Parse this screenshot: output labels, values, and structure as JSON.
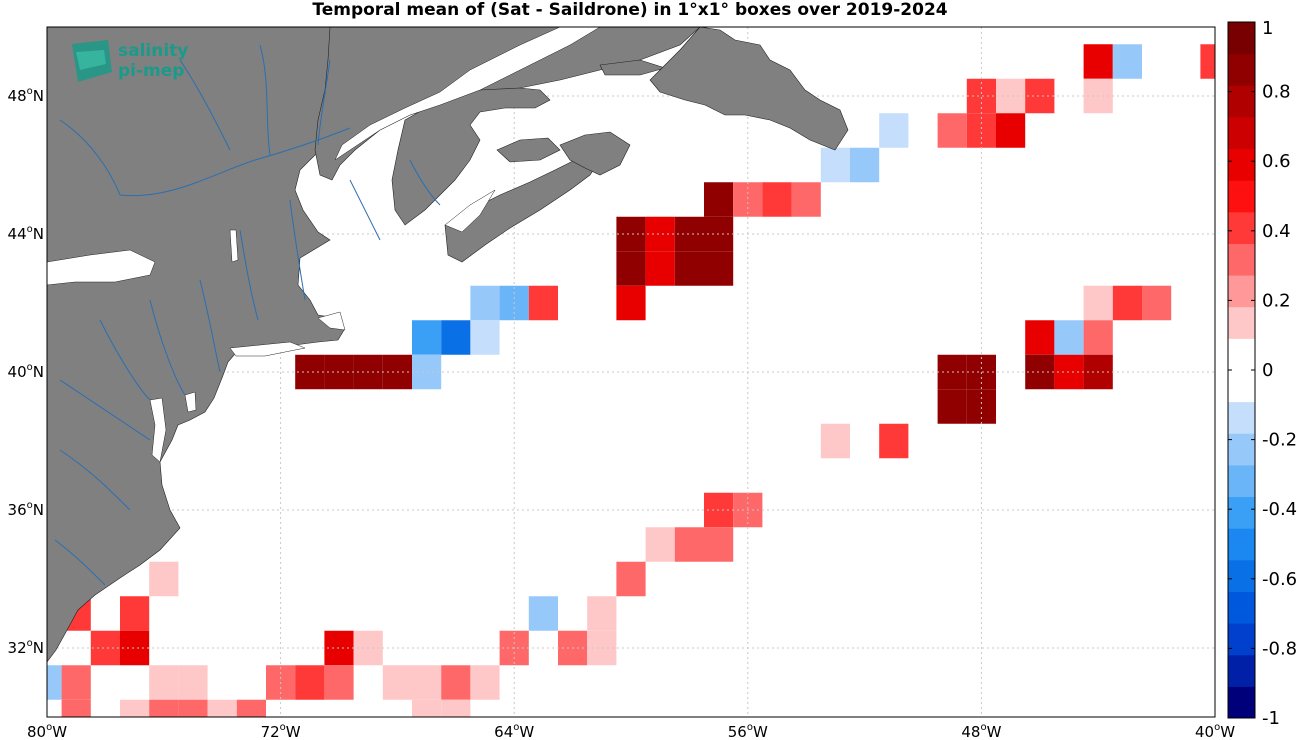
{
  "title": "Temporal mean of (Sat - Saildrone) in 1°x1° boxes over 2019-2024",
  "logo": {
    "line1": "salinity",
    "line2": "pi-mep"
  },
  "colors": {
    "land": "#808080",
    "river": "#2a6fb0",
    "grid": "#c8c8c8",
    "frame": "#000000"
  },
  "map": {
    "lon_range": [
      -80,
      -40
    ],
    "lat_range": [
      30,
      50
    ],
    "lon_ticks": [
      {
        "value": -80,
        "deg": "80",
        "hem": "W"
      },
      {
        "value": -72,
        "deg": "72",
        "hem": "W"
      },
      {
        "value": -64,
        "deg": "64",
        "hem": "W"
      },
      {
        "value": -56,
        "deg": "56",
        "hem": "W"
      },
      {
        "value": -48,
        "deg": "48",
        "hem": "W"
      },
      {
        "value": -40,
        "deg": "40",
        "hem": "W"
      }
    ],
    "lat_ticks": [
      {
        "value": 32,
        "deg": "32",
        "hem": "N"
      },
      {
        "value": 36,
        "deg": "36",
        "hem": "N"
      },
      {
        "value": 40,
        "deg": "40",
        "hem": "N"
      },
      {
        "value": 44,
        "deg": "44",
        "hem": "N"
      },
      {
        "value": 48,
        "deg": "48",
        "hem": "N"
      }
    ],
    "degree_symbol": "o"
  },
  "colorbar": {
    "range": [
      -1,
      1
    ],
    "colors": [
      "#00007a",
      "#0020a8",
      "#0040cc",
      "#0058dc",
      "#0a70e6",
      "#1a88f0",
      "#3aa0f5",
      "#6ab4f8",
      "#96c8fa",
      "#c4defc",
      "#ffffff",
      "#ffffff",
      "#ffc8c8",
      "#ff9898",
      "#ff6868",
      "#ff3838",
      "#ff1010",
      "#e80000",
      "#cc0000",
      "#b00000",
      "#900000",
      "#780000"
    ],
    "ticks": [
      {
        "value": 1,
        "label": "1"
      },
      {
        "value": 0.8,
        "label": "0.8"
      },
      {
        "value": 0.6,
        "label": "0.6"
      },
      {
        "value": 0.4,
        "label": "0.4"
      },
      {
        "value": 0.2,
        "label": "0.2"
      },
      {
        "value": 0,
        "label": "0"
      },
      {
        "value": -0.2,
        "label": "-0.2"
      },
      {
        "value": -0.4,
        "label": "-0.4"
      },
      {
        "value": -0.6,
        "label": "-0.6"
      },
      {
        "value": -0.8,
        "label": "-0.8"
      },
      {
        "value": -1,
        "label": "-1"
      }
    ]
  },
  "chart_data": {
    "type": "heatmap",
    "title": "Temporal mean of (Sat - Saildrone) in 1°x1° boxes over 2019-2024",
    "xlabel": "",
    "ylabel": "",
    "x_units": "longitude (°E, negative = W)",
    "y_units": "latitude (°N)",
    "xlim": [
      -80,
      -40
    ],
    "ylim": [
      30,
      50
    ],
    "cell_size_deg": 1,
    "colorbar_range": [
      -1,
      1
    ],
    "cells": [
      {
        "lon": -44,
        "lat": 49,
        "value": 0.55
      },
      {
        "lon": -43,
        "lat": 49,
        "value": -0.2
      },
      {
        "lon": -40,
        "lat": 49,
        "value": 0.45
      },
      {
        "lon": -48,
        "lat": 48,
        "value": 0.4
      },
      {
        "lon": -47,
        "lat": 48,
        "value": 0.15
      },
      {
        "lon": -46,
        "lat": 48,
        "value": 0.45
      },
      {
        "lon": -44,
        "lat": 48,
        "value": 0.15
      },
      {
        "lon": -51,
        "lat": 47,
        "value": -0.1
      },
      {
        "lon": -49,
        "lat": 47,
        "value": 0.3
      },
      {
        "lon": -48,
        "lat": 47,
        "value": 0.45
      },
      {
        "lon": -47,
        "lat": 47,
        "value": 0.55
      },
      {
        "lon": -53,
        "lat": 46,
        "value": -0.1
      },
      {
        "lon": -52,
        "lat": 46,
        "value": -0.2
      },
      {
        "lon": -57,
        "lat": 45,
        "value": 0.9
      },
      {
        "lon": -56,
        "lat": 45,
        "value": 0.3
      },
      {
        "lon": -55,
        "lat": 45,
        "value": 0.4
      },
      {
        "lon": -54,
        "lat": 45,
        "value": 0.3
      },
      {
        "lon": -60,
        "lat": 44,
        "value": 0.9
      },
      {
        "lon": -59,
        "lat": 44,
        "value": 0.6
      },
      {
        "lon": -58,
        "lat": 44,
        "value": 0.9
      },
      {
        "lon": -57,
        "lat": 44,
        "value": 0.9
      },
      {
        "lon": -60,
        "lat": 43,
        "value": 0.9
      },
      {
        "lon": -59,
        "lat": 43,
        "value": 0.6
      },
      {
        "lon": -58,
        "lat": 43,
        "value": 0.9
      },
      {
        "lon": -57,
        "lat": 43,
        "value": 0.9
      },
      {
        "lon": -65,
        "lat": 42,
        "value": -0.2
      },
      {
        "lon": -64,
        "lat": 42,
        "value": -0.3
      },
      {
        "lon": -63,
        "lat": 42,
        "value": 0.45
      },
      {
        "lon": -60,
        "lat": 42,
        "value": 0.6
      },
      {
        "lon": -44,
        "lat": 42,
        "value": 0.15
      },
      {
        "lon": -43,
        "lat": 42,
        "value": 0.4
      },
      {
        "lon": -42,
        "lat": 42,
        "value": 0.3
      },
      {
        "lon": -67,
        "lat": 41,
        "value": -0.45
      },
      {
        "lon": -66,
        "lat": 41,
        "value": -0.6
      },
      {
        "lon": -65,
        "lat": 41,
        "value": -0.1
      },
      {
        "lon": -46,
        "lat": 41,
        "value": 0.55
      },
      {
        "lon": -45,
        "lat": 41,
        "value": -0.2
      },
      {
        "lon": -44,
        "lat": 41,
        "value": 0.3
      },
      {
        "lon": -71,
        "lat": 40,
        "value": 0.85
      },
      {
        "lon": -70,
        "lat": 40,
        "value": 0.9
      },
      {
        "lon": -69,
        "lat": 40,
        "value": 0.9
      },
      {
        "lon": -68,
        "lat": 40,
        "value": 0.9
      },
      {
        "lon": -67,
        "lat": 40,
        "value": -0.2
      },
      {
        "lon": -49,
        "lat": 40,
        "value": 0.9
      },
      {
        "lon": -48,
        "lat": 40,
        "value": 0.9
      },
      {
        "lon": -46,
        "lat": 40,
        "value": 0.85
      },
      {
        "lon": -45,
        "lat": 40,
        "value": 0.55
      },
      {
        "lon": -44,
        "lat": 40,
        "value": 0.8
      },
      {
        "lon": -49,
        "lat": 39,
        "value": 0.9
      },
      {
        "lon": -48,
        "lat": 39,
        "value": 0.9
      },
      {
        "lon": -53,
        "lat": 38,
        "value": 0.15
      },
      {
        "lon": -51,
        "lat": 38,
        "value": 0.45
      },
      {
        "lon": -57,
        "lat": 36,
        "value": 0.45
      },
      {
        "lon": -56,
        "lat": 36,
        "value": 0.3
      },
      {
        "lon": -59,
        "lat": 35,
        "value": 0.15
      },
      {
        "lon": -58,
        "lat": 35,
        "value": 0.3
      },
      {
        "lon": -57,
        "lat": 35,
        "value": 0.3
      },
      {
        "lon": -60,
        "lat": 34,
        "value": 0.3
      },
      {
        "lon": -76,
        "lat": 34,
        "value": 0.15
      },
      {
        "lon": -79,
        "lat": 33,
        "value": 0.45
      },
      {
        "lon": -77,
        "lat": 33,
        "value": 0.45
      },
      {
        "lon": -63,
        "lat": 33,
        "value": -0.2
      },
      {
        "lon": -61,
        "lat": 33,
        "value": 0.15
      },
      {
        "lon": -78,
        "lat": 32,
        "value": 0.45
      },
      {
        "lon": -77,
        "lat": 32,
        "value": 0.55
      },
      {
        "lon": -70,
        "lat": 32,
        "value": 0.55
      },
      {
        "lon": -69,
        "lat": 32,
        "value": 0.15
      },
      {
        "lon": -64,
        "lat": 32,
        "value": 0.3
      },
      {
        "lon": -62,
        "lat": 32,
        "value": 0.3
      },
      {
        "lon": -61,
        "lat": 32,
        "value": 0.15
      },
      {
        "lon": -80,
        "lat": 31,
        "value": -0.2
      },
      {
        "lon": -79,
        "lat": 31,
        "value": 0.3
      },
      {
        "lon": -76,
        "lat": 31,
        "value": 0.15
      },
      {
        "lon": -75,
        "lat": 31,
        "value": 0.15
      },
      {
        "lon": -72,
        "lat": 31,
        "value": 0.3
      },
      {
        "lon": -71,
        "lat": 31,
        "value": 0.45
      },
      {
        "lon": -70,
        "lat": 31,
        "value": 0.3
      },
      {
        "lon": -68,
        "lat": 31,
        "value": 0.15
      },
      {
        "lon": -67,
        "lat": 31,
        "value": 0.15
      },
      {
        "lon": -66,
        "lat": 31,
        "value": 0.3
      },
      {
        "lon": -65,
        "lat": 31,
        "value": 0.15
      },
      {
        "lon": -79,
        "lat": 30,
        "value": 0.3
      },
      {
        "lon": -77,
        "lat": 30,
        "value": 0.15
      },
      {
        "lon": -76,
        "lat": 30,
        "value": 0.3
      },
      {
        "lon": -75,
        "lat": 30,
        "value": 0.3
      },
      {
        "lon": -74,
        "lat": 30,
        "value": 0.15
      },
      {
        "lon": -73,
        "lat": 30,
        "value": 0.3
      },
      {
        "lon": -67,
        "lat": 30,
        "value": 0.15
      },
      {
        "lon": -66,
        "lat": 30,
        "value": 0.15
      }
    ]
  }
}
